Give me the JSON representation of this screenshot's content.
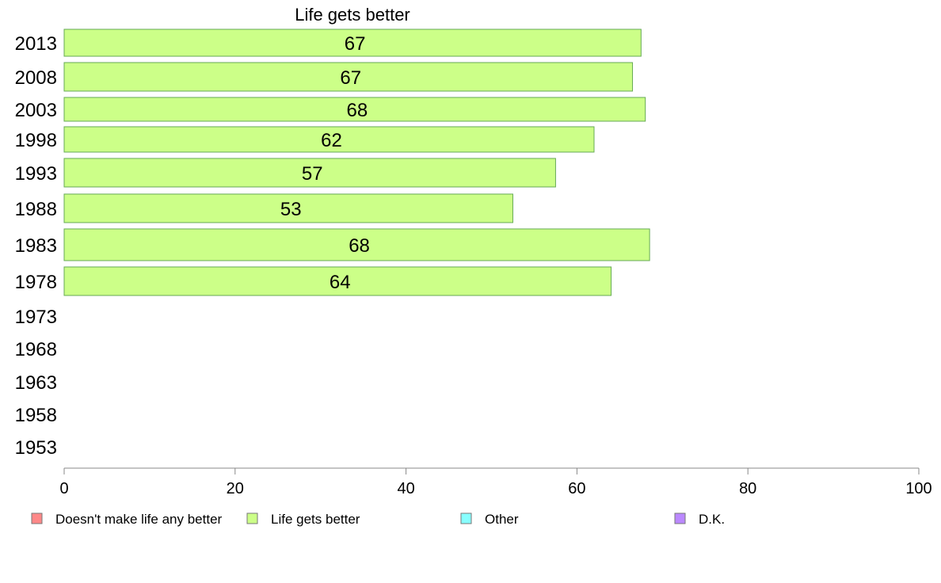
{
  "chart_data": {
    "type": "bar",
    "orientation": "horizontal",
    "title": "Life gets better",
    "categories": [
      "2013",
      "2008",
      "2003",
      "1998",
      "1993",
      "1988",
      "1983",
      "1978",
      "1973",
      "1968",
      "1963",
      "1958",
      "1953"
    ],
    "series": [
      {
        "name": "Life gets better",
        "values": [
          67.5,
          66.5,
          68,
          62,
          57.5,
          52.5,
          68.5,
          64,
          null,
          null,
          null,
          null,
          null
        ],
        "labels": [
          "67",
          "67",
          "68",
          "62",
          "57",
          "53",
          "68",
          "64",
          "",
          "",
          "",
          "",
          ""
        ],
        "color": "#ccff88"
      }
    ],
    "xlim": [
      0,
      100
    ],
    "xticks": [
      0,
      20,
      40,
      60,
      80,
      100
    ],
    "grid": false,
    "legend": {
      "placement": "bottom",
      "entries": [
        {
          "label": "Doesn't make life any better",
          "color": "#ff8888"
        },
        {
          "label": "Life gets better",
          "color": "#ccff88"
        },
        {
          "label": "Other",
          "color": "#88ffff"
        },
        {
          "label": "D.K.",
          "color": "#bb88ff"
        }
      ]
    },
    "colors": {
      "bar_stroke": "#66aa55",
      "axis": "#888888"
    }
  }
}
